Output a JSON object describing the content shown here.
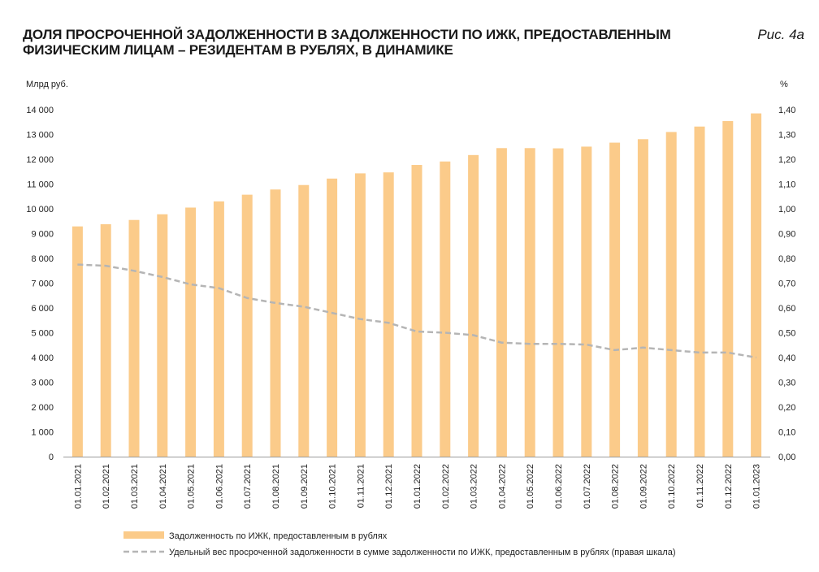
{
  "header": {
    "title": "ДОЛЯ ПРОСРОЧЕННОЙ ЗАДОЛЖЕННОСТИ В ЗАДОЛЖЕННОСТИ ПО ИЖК, ПРЕДОСТАВЛЕННЫМ ФИЗИЧЕСКИМ ЛИЦАМ – РЕЗИДЕНТАМ В РУБЛЯХ, В ДИНАМИКЕ",
    "figure_label": "Рис. 4а"
  },
  "colors": {
    "bar": "#FBCB8A",
    "line": "#B5B5B5",
    "axis": "#9A9A9A"
  },
  "chart_data": {
    "type": "bar",
    "categories": [
      "01.01.2021",
      "01.02.2021",
      "01.03.2021",
      "01.04.2021",
      "01.05.2021",
      "01.06.2021",
      "01.07.2021",
      "01.08.2021",
      "01.09.2021",
      "01.10.2021",
      "01.11.2021",
      "01.12.2021",
      "01.01.2022",
      "01.02.2022",
      "01.03.2022",
      "01.04.2022",
      "01.05.2022",
      "01.06.2022",
      "01.07.2022",
      "01.08.2022",
      "01.09.2022",
      "01.10.2022",
      "01.11.2022",
      "01.12.2022",
      "01.01.2023"
    ],
    "left_axis": {
      "unit": "Млрд руб.",
      "ylim": [
        0,
        14000
      ],
      "ticks": [
        {
          "v": 0,
          "label": "0"
        },
        {
          "v": 1000,
          "label": "1 000"
        },
        {
          "v": 2000,
          "label": "2 000"
        },
        {
          "v": 3000,
          "label": "3 000"
        },
        {
          "v": 4000,
          "label": "4 000"
        },
        {
          "v": 5000,
          "label": "5 000"
        },
        {
          "v": 6000,
          "label": "6 000"
        },
        {
          "v": 7000,
          "label": "7 000"
        },
        {
          "v": 8000,
          "label": "8 000"
        },
        {
          "v": 9000,
          "label": "9 000"
        },
        {
          "v": 10000,
          "label": "10 000"
        },
        {
          "v": 11000,
          "label": "11 000"
        },
        {
          "v": 12000,
          "label": "12 000"
        },
        {
          "v": 13000,
          "label": "13 000"
        },
        {
          "v": 14000,
          "label": "14 000"
        }
      ]
    },
    "right_axis": {
      "unit": "%",
      "ylim": [
        0,
        1.4
      ],
      "ticks": [
        {
          "v": 0,
          "label": "0,00"
        },
        {
          "v": 0.1,
          "label": "0,10"
        },
        {
          "v": 0.2,
          "label": "0,20"
        },
        {
          "v": 0.3,
          "label": "0,30"
        },
        {
          "v": 0.4,
          "label": "0,40"
        },
        {
          "v": 0.5,
          "label": "0,50"
        },
        {
          "v": 0.6,
          "label": "0,60"
        },
        {
          "v": 0.7,
          "label": "0,70"
        },
        {
          "v": 0.8,
          "label": "0,80"
        },
        {
          "v": 0.9,
          "label": "0,90"
        },
        {
          "v": 1.0,
          "label": "1,00"
        },
        {
          "v": 1.1,
          "label": "1,10"
        },
        {
          "v": 1.2,
          "label": "1,20"
        },
        {
          "v": 1.3,
          "label": "1,30"
        },
        {
          "v": 1.4,
          "label": "1,40"
        }
      ]
    },
    "series": [
      {
        "name": "Задолженность по ИЖК, предоставленным в рублях",
        "type": "bar",
        "axis": "left",
        "values": [
          9290,
          9380,
          9550,
          9780,
          10050,
          10300,
          10570,
          10780,
          10960,
          11220,
          11430,
          11470,
          11770,
          11910,
          12170,
          12450,
          12450,
          12440,
          12510,
          12670,
          12810,
          13100,
          13320,
          13540,
          13850
        ]
      },
      {
        "name": "Удельный вес просроченной задолженности в сумме задолженности по ИЖК, предоставленным в рублях (правая шкала)",
        "type": "line",
        "axis": "right",
        "values": [
          0.775,
          0.77,
          0.75,
          0.725,
          0.695,
          0.68,
          0.64,
          0.62,
          0.605,
          0.58,
          0.555,
          0.54,
          0.505,
          0.5,
          0.49,
          0.46,
          0.455,
          0.455,
          0.452,
          0.43,
          0.44,
          0.43,
          0.42,
          0.42,
          0.4
        ]
      }
    ]
  }
}
